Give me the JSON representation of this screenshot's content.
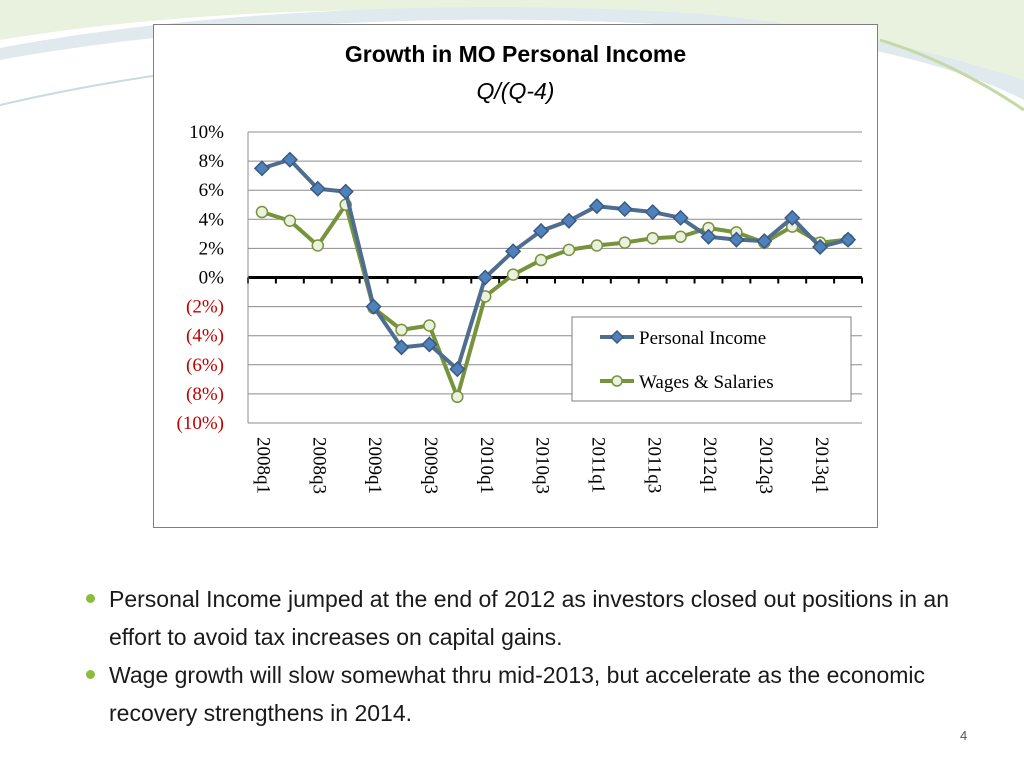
{
  "chart_data": {
    "type": "line",
    "title": "Growth in MO Personal Income",
    "subtitle": "Q/(Q-4)",
    "xlabel": "",
    "ylabel": "",
    "ylim": [
      -10,
      10
    ],
    "y_ticks": [
      10,
      8,
      6,
      4,
      2,
      0,
      -2,
      -4,
      -6,
      -8,
      -10
    ],
    "y_tick_labels": [
      "10%",
      "8%",
      "6%",
      "4%",
      "2%",
      "0%",
      "(2%)",
      "(4%)",
      "(6%)",
      "(8%)",
      "(10%)"
    ],
    "x": [
      "2008q1",
      "2008q2",
      "2008q3",
      "2008q4",
      "2009q1",
      "2009q2",
      "2009q3",
      "2009q4",
      "2010q1",
      "2010q2",
      "2010q3",
      "2010q4",
      "2011q1",
      "2011q2",
      "2011q3",
      "2011q4",
      "2012q1",
      "2012q2",
      "2012q3",
      "2012q4",
      "2013q1",
      "2013q2"
    ],
    "x_tick_labels": [
      "2008q1",
      "2008q3",
      "2009q1",
      "2009q3",
      "2010q1",
      "2010q3",
      "2011q1",
      "2011q3",
      "2012q1",
      "2012q3",
      "2013q1"
    ],
    "series": [
      {
        "name": "Personal Income",
        "color": "#4f6d8f",
        "marker": "diamond",
        "values": [
          7.5,
          8.1,
          6.1,
          5.9,
          -2.0,
          -4.8,
          -4.6,
          -6.3,
          0.0,
          1.8,
          3.2,
          3.9,
          4.9,
          4.7,
          4.5,
          4.1,
          2.8,
          2.6,
          2.5,
          4.1,
          2.1,
          2.6
        ]
      },
      {
        "name": "Wages & Salaries",
        "color": "#77933c",
        "marker": "circle",
        "values": [
          4.5,
          3.9,
          2.2,
          5.0,
          -2.1,
          -3.6,
          -3.3,
          -8.2,
          -1.3,
          0.2,
          1.2,
          1.9,
          2.2,
          2.4,
          2.7,
          2.8,
          3.4,
          3.1,
          2.4,
          3.5,
          2.4,
          2.6
        ]
      }
    ],
    "grid": true,
    "legend_position": "lower-right",
    "negative_label_color": "#c00000"
  },
  "bullets": [
    "Personal Income jumped at the end of 2012 as investors closed out positions in an effort to avoid tax increases on capital gains.",
    "Wage growth will slow somewhat thru mid-2013, but accelerate as the economic recovery strengthens in 2014."
  ],
  "page_number": "4"
}
